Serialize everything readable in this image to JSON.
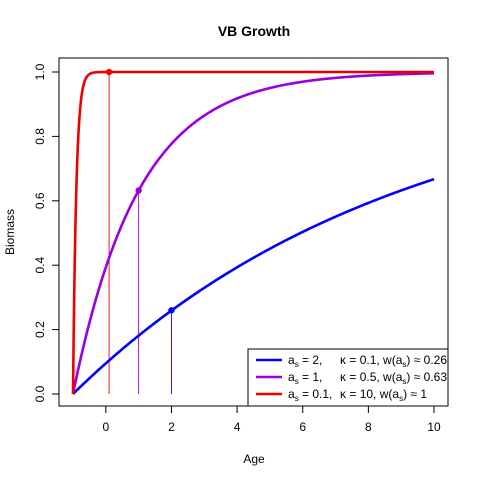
{
  "chart_data": {
    "type": "line",
    "title": "VB Growth",
    "xlabel": "Age",
    "ylabel": "Biomass",
    "xlim": [
      -1,
      10
    ],
    "ylim": [
      0,
      1
    ],
    "x_ticks": [
      0,
      2,
      4,
      6,
      8,
      10
    ],
    "y_ticks": [
      0.0,
      0.2,
      0.4,
      0.6,
      0.8,
      1.0
    ],
    "x_tick_labels": [
      "0",
      "2",
      "4",
      "6",
      "8",
      "10"
    ],
    "y_tick_labels": [
      "0.0",
      "0.2",
      "0.4",
      "0.6",
      "0.8",
      "1.0"
    ],
    "grid": false,
    "legend_position": "bottom-right",
    "series": [
      {
        "color": "#0000ff",
        "a_s": 2,
        "kappa": 0.1,
        "w_as": 0.26,
        "legend_a": "2,",
        "legend_k": "0.1,",
        "legend_w": "0.26",
        "marker": {
          "x": 2,
          "y": 0.26
        },
        "x": [
          -1,
          0,
          1,
          2,
          3,
          4,
          5,
          6,
          7,
          8,
          9,
          10
        ],
        "y": [
          0.0,
          0.095,
          0.181,
          0.259,
          0.33,
          0.393,
          0.451,
          0.503,
          0.551,
          0.593,
          0.632,
          0.667
        ]
      },
      {
        "color": "#9900dd",
        "a_s": 1,
        "kappa": 0.5,
        "w_as": 0.63,
        "legend_a": "1,",
        "legend_k": "0.5,",
        "legend_w": "0.63",
        "marker": {
          "x": 1,
          "y": 0.632
        },
        "x": [
          -1,
          -0.5,
          0,
          0.5,
          1,
          1.5,
          2,
          3,
          4,
          5,
          6,
          7,
          8,
          9,
          10
        ],
        "y": [
          0.0,
          0.221,
          0.393,
          0.528,
          0.632,
          0.713,
          0.777,
          0.865,
          0.918,
          0.95,
          0.97,
          0.982,
          0.989,
          0.993,
          0.996
        ]
      },
      {
        "color": "#ee0000",
        "a_s": 0.1,
        "kappa": 10,
        "w_as": 1,
        "legend_a": "0.1,",
        "legend_k": "10,",
        "legend_w": "1",
        "marker": {
          "x": 0.1,
          "y": 1.0
        },
        "x": [
          -1,
          -0.9,
          -0.8,
          -0.7,
          -0.6,
          -0.5,
          -0.4,
          -0.3,
          -0.2,
          0,
          0.5,
          1,
          2,
          4,
          6,
          8,
          10
        ],
        "y": [
          0.0,
          0.632,
          0.865,
          0.95,
          0.982,
          0.993,
          0.998,
          0.999,
          1.0,
          1.0,
          1.0,
          1.0,
          1.0,
          1.0,
          1.0,
          1.0,
          1.0
        ]
      }
    ],
    "legend": {
      "a_label": "a",
      "k_label": "κ = ",
      "w_label_prefix": "w(a",
      "w_label_suffix": ") ≈ ",
      "subscript": "s",
      "eq": " = "
    }
  }
}
